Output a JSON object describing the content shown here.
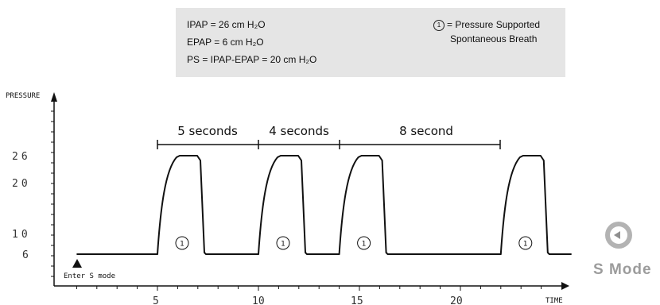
{
  "legend": {
    "ipap": "IPAP = 26 cm H₂O",
    "epap": "EPAP = 6 cm H₂O",
    "ps": "PS = IPAP-EPAP = 20 cm H₂O",
    "symbol_number": "1",
    "symbol_desc_line1": "= Pressure Supported",
    "symbol_desc_line2": "Spontaneous Breath"
  },
  "diagram": {
    "ylabel": "PRESSURE",
    "xlabel": "TIME",
    "y_ticks": [
      "26",
      "20",
      "10",
      "6"
    ],
    "x_ticks": [
      "5",
      "10",
      "15",
      "20"
    ],
    "intervals": [
      "5 seconds",
      "4 seconds",
      "8 second"
    ],
    "breath_marker": "1",
    "start_label": "Enter S mode",
    "baseline_pressure": 6,
    "peak_pressure": 26,
    "breath_starts": [
      5,
      10,
      14,
      22
    ]
  },
  "nav": {
    "mode_label": "S Mode"
  },
  "colors": {
    "ink": "#111111",
    "legend_bg": "#e5e5e5",
    "nav_gray": "#9c9c9c"
  }
}
